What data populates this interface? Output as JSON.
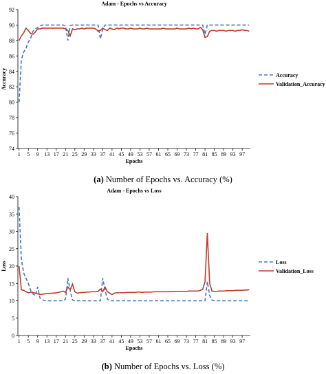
{
  "chart_data": [
    {
      "type": "line",
      "title": "Adam - Epochs vs Accuracy",
      "xlabel": "Epochs",
      "ylabel": "Accuracy",
      "ylim": [
        74,
        92
      ],
      "yticks": [
        74,
        76,
        78,
        80,
        82,
        84,
        86,
        88,
        90,
        92
      ],
      "xticks": [
        1,
        5,
        9,
        13,
        17,
        21,
        25,
        29,
        33,
        37,
        41,
        45,
        49,
        53,
        57,
        61,
        65,
        69,
        73,
        77,
        81,
        85,
        89,
        93,
        97
      ],
      "legend_position": "right",
      "caption_label": "(a)",
      "caption_text": "Number of Epochs vs. Accuracy (%)",
      "series": [
        {
          "name": "Accuracy",
          "color": "#3b78c4",
          "style": "dashed",
          "values": [
            80,
            85.5,
            86.5,
            87,
            87.8,
            88.3,
            89.2,
            89.5,
            89.7,
            89.9,
            90,
            90,
            90,
            90,
            90,
            90,
            90,
            90,
            90,
            90,
            89.9,
            88,
            89.9,
            90,
            90,
            90,
            90,
            90,
            90,
            90,
            90,
            90,
            90,
            90,
            90,
            88.2,
            89.5,
            90,
            90,
            90,
            90,
            90,
            90,
            90,
            90,
            90,
            90,
            90,
            90,
            90,
            90,
            90,
            90,
            90,
            90,
            90,
            90,
            90,
            90,
            90,
            90,
            90,
            90,
            90,
            90,
            90,
            90,
            90,
            90,
            90,
            90,
            90,
            90,
            90,
            90,
            90,
            90,
            90,
            90,
            90,
            88.8,
            90,
            90,
            90,
            90,
            90,
            90,
            90,
            90,
            90,
            90,
            90,
            90,
            90,
            90,
            90,
            90,
            90,
            90,
            90
          ]
        },
        {
          "name": "Validation_Accuracy",
          "color": "#c0392b",
          "style": "solid",
          "values": [
            88,
            88.6,
            89,
            89.6,
            89.3,
            88.9,
            88.8,
            89.1,
            89.5,
            89.5,
            89.6,
            89.6,
            89.6,
            89.6,
            89.6,
            89.6,
            89.6,
            89.6,
            89.6,
            89.6,
            89.5,
            89.3,
            88.6,
            89.5,
            89.4,
            89.5,
            89.5,
            89.6,
            89.5,
            89.6,
            89.6,
            89.6,
            89.6,
            89.5,
            89.2,
            89.3,
            89.6,
            89.4,
            89.3,
            89.6,
            89.5,
            89.4,
            89.6,
            89.5,
            89.6,
            89.6,
            89.5,
            89.5,
            89.6,
            89.5,
            89.5,
            89.5,
            89.6,
            89.5,
            89.5,
            89.6,
            89.5,
            89.5,
            89.5,
            89.5,
            89.5,
            89.5,
            89.6,
            89.5,
            89.5,
            89.5,
            89.5,
            89.5,
            89.6,
            89.5,
            89.5,
            89.5,
            89.5,
            89.6,
            89.5,
            89.6,
            89.5,
            89.5,
            89.7,
            89.4,
            88.4,
            88.5,
            89.2,
            89.3,
            89.3,
            89.2,
            89.3,
            89.3,
            89.3,
            89.2,
            89.3,
            89.3,
            89.3,
            89.2,
            89.3,
            89.3,
            89.4,
            89.3,
            89.3,
            89.2
          ]
        }
      ]
    },
    {
      "type": "line",
      "title": "Adam - Epochs vs Loss",
      "xlabel": "Epochs",
      "ylabel": "Loss",
      "ylim": [
        0,
        40
      ],
      "yticks": [
        0,
        5,
        10,
        15,
        20,
        25,
        30,
        35,
        40
      ],
      "xticks": [
        1,
        5,
        9,
        13,
        17,
        21,
        25,
        29,
        33,
        37,
        41,
        45,
        49,
        53,
        57,
        61,
        65,
        69,
        73,
        77,
        81,
        85,
        89,
        93,
        97
      ],
      "legend_position": "right",
      "caption_label": "(b)",
      "caption_text": "Number of Epochs vs. Loss (%)",
      "series": [
        {
          "name": "Loss",
          "color": "#3b78c4",
          "style": "dashed",
          "values": [
            37,
            22,
            18,
            16.5,
            15,
            13,
            12,
            11.5,
            14,
            10.8,
            10.3,
            10.1,
            10,
            10,
            10,
            10,
            10,
            10,
            10,
            10,
            10.5,
            16.5,
            13,
            10.2,
            10,
            10,
            10,
            10,
            10,
            10,
            10,
            10,
            10,
            10,
            10,
            10,
            16.5,
            13,
            10.5,
            10,
            10,
            10,
            10,
            10,
            10,
            10,
            10,
            10,
            10,
            10,
            10,
            10,
            10,
            10,
            10,
            10,
            10,
            10,
            10,
            10,
            10,
            10,
            10,
            10,
            10,
            10,
            10,
            10,
            10,
            10,
            10,
            10,
            10,
            10,
            10,
            10,
            10,
            10,
            10,
            10,
            10,
            15.5,
            11.5,
            10.2,
            10,
            10,
            10,
            10,
            10,
            10,
            10,
            10,
            10,
            10,
            10,
            10,
            10,
            10,
            10,
            10
          ]
        },
        {
          "name": "Validation_Loss",
          "color": "#c0392b",
          "style": "solid",
          "values": [
            20,
            13.2,
            13,
            12.6,
            12.3,
            12.5,
            12.4,
            12.2,
            12,
            11.8,
            11.9,
            12,
            12.1,
            12.1,
            12.2,
            12.2,
            12.3,
            12.4,
            12.6,
            12.8,
            12.4,
            14,
            13.2,
            14.8,
            12.6,
            12.2,
            12.3,
            12.4,
            12.4,
            12.5,
            12.5,
            12.6,
            12.6,
            12.6,
            12.7,
            13.4,
            12.6,
            14,
            12.6,
            12.2,
            11.8,
            12.2,
            12.3,
            12.3,
            12.3,
            12.3,
            12.4,
            12.4,
            12.4,
            12.4,
            12.4,
            12.5,
            12.5,
            12.4,
            12.5,
            12.5,
            12.5,
            12.5,
            12.6,
            12.6,
            12.6,
            12.6,
            12.6,
            12.6,
            12.6,
            12.6,
            12.7,
            12.7,
            12.7,
            12.7,
            12.7,
            12.7,
            12.7,
            12.8,
            12.8,
            12.8,
            12.8,
            12.8,
            13,
            13.3,
            15.5,
            29.5,
            15,
            12.8,
            12.7,
            12.7,
            12.8,
            12.8,
            12.8,
            12.9,
            12.9,
            12.9,
            12.9,
            13,
            13,
            13,
            13,
            13.1,
            13.1,
            13.2
          ]
        }
      ]
    }
  ]
}
